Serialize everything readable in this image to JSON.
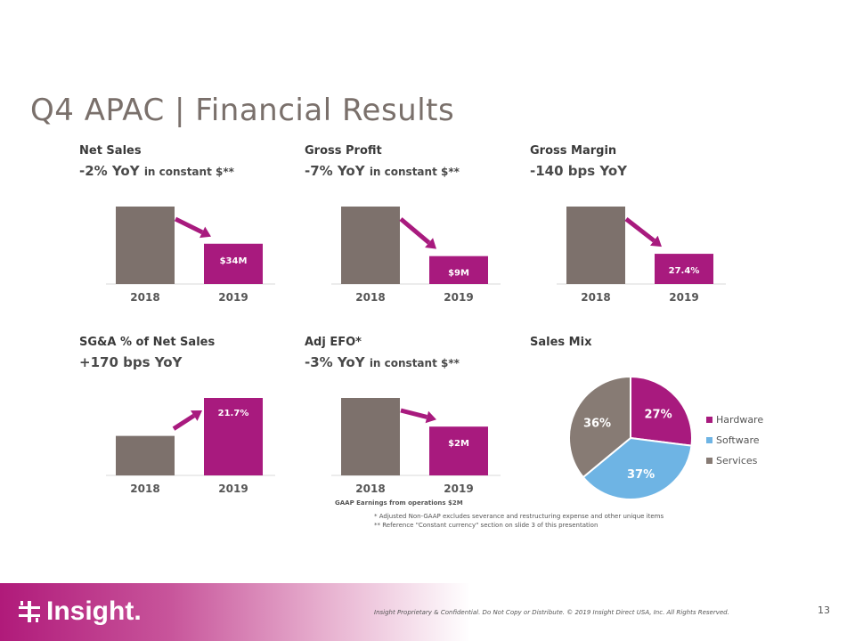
{
  "title": "Q4 APAC | Financial Results",
  "colors": {
    "prior": "#7d716c",
    "current": "#a81a7e",
    "arrow": "#a81a7e",
    "hardware": "#a81a7e",
    "software": "#6eb4e4",
    "services": "#877b74"
  },
  "kpis": [
    {
      "label": "Net Sales",
      "metric": "-2% YoY",
      "note": "in constant $**",
      "trend": "down",
      "chart_data": {
        "type": "bar",
        "categories": [
          "2018",
          "2019"
        ],
        "values": [
          1.0,
          0.52
        ],
        "labels": [
          "",
          "$34M"
        ]
      }
    },
    {
      "label": "Gross Profit",
      "metric": "-7% YoY",
      "note": "in constant $**",
      "trend": "down",
      "chart_data": {
        "type": "bar",
        "categories": [
          "2018",
          "2019"
        ],
        "values": [
          1.0,
          0.36
        ],
        "labels": [
          "",
          "$9M"
        ]
      }
    },
    {
      "label": "Gross Margin",
      "metric": "-140 bps YoY",
      "note": "",
      "trend": "down",
      "chart_data": {
        "type": "bar",
        "categories": [
          "2018",
          "2019"
        ],
        "values": [
          1.0,
          0.39
        ],
        "labels": [
          "",
          "27.4%"
        ]
      }
    },
    {
      "label": "SG&A % of Net Sales",
      "metric": "+170 bps YoY",
      "note": "",
      "trend": "up",
      "chart_data": {
        "type": "bar",
        "categories": [
          "2018",
          "2019"
        ],
        "values": [
          0.51,
          1.0
        ],
        "labels": [
          "",
          "21.7%"
        ]
      }
    },
    {
      "label": "Adj EFO*",
      "metric": "-3% YoY",
      "note": "in constant $**",
      "trend": "down",
      "chart_data": {
        "type": "bar",
        "categories": [
          "2018",
          "2019"
        ],
        "values": [
          1.0,
          0.63
        ],
        "labels": [
          "",
          "$2M"
        ]
      }
    }
  ],
  "sales_mix": {
    "label": "Sales Mix",
    "chart_data": {
      "type": "pie",
      "categories": [
        "Hardware",
        "Software",
        "Services"
      ],
      "values": [
        27,
        37,
        36
      ],
      "labels": [
        "27%",
        "37%",
        "36%"
      ]
    }
  },
  "gaap_note": "GAAP Earnings from operations $2M",
  "footnotes": [
    "*   Adjusted Non-GAAP excludes severance and restructuring  expense and other unique items",
    "** Reference \"Constant currency\" section on slide 3 of this presentation"
  ],
  "footer": {
    "logo_text": "Insight.",
    "confidential": "Insight Proprietary & Confidential. Do Not Copy or Distribute.  © 2019 Insight Direct USA, Inc.  All Rights Reserved.",
    "page_number": "13"
  }
}
